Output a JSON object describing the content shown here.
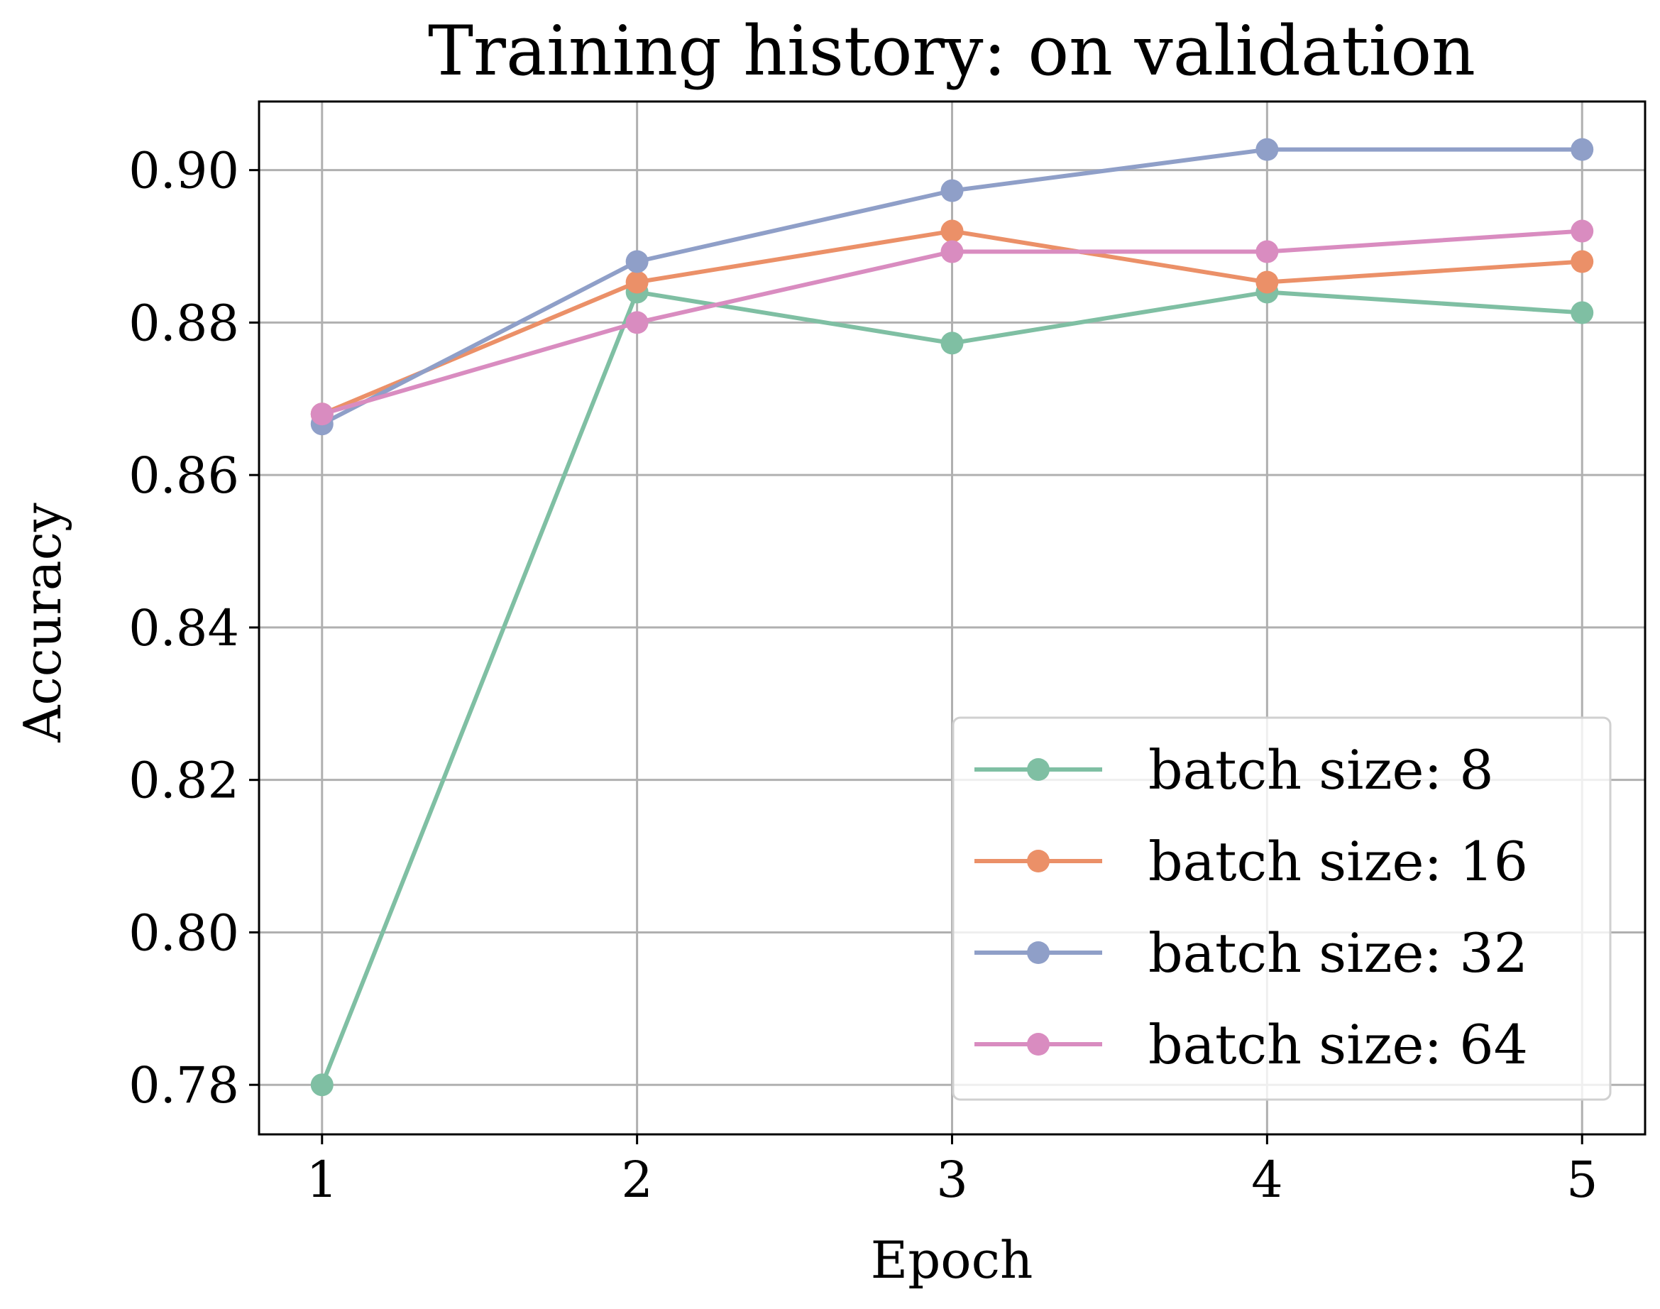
{
  "chart_data": {
    "type": "line",
    "title": "Training history: on validation",
    "xlabel": "Epoch",
    "ylabel": "Accuracy",
    "x": [
      1,
      2,
      3,
      4,
      5
    ],
    "xticks": [
      "1",
      "2",
      "3",
      "4",
      "5"
    ],
    "yticks": [
      "0.78",
      "0.80",
      "0.82",
      "0.84",
      "0.86",
      "0.88",
      "0.90"
    ],
    "xlim": [
      0.8,
      5.2
    ],
    "ylim": [
      0.7735,
      0.909
    ],
    "grid": true,
    "legend_position": "lower-right",
    "series": [
      {
        "name": "batch size: 8",
        "color": "#7fbfa3",
        "values": [
          0.78,
          0.884,
          0.8773,
          0.884,
          0.8813
        ]
      },
      {
        "name": "batch size: 16",
        "color": "#eb9068",
        "values": [
          0.868,
          0.8853,
          0.892,
          0.8853,
          0.888
        ]
      },
      {
        "name": "batch size: 32",
        "color": "#8f9fc8",
        "values": [
          0.8667,
          0.888,
          0.8973,
          0.9027,
          0.9027
        ]
      },
      {
        "name": "batch size: 64",
        "color": "#d98cc0",
        "values": [
          0.868,
          0.88,
          0.8893,
          0.8893,
          0.892
        ]
      }
    ]
  }
}
